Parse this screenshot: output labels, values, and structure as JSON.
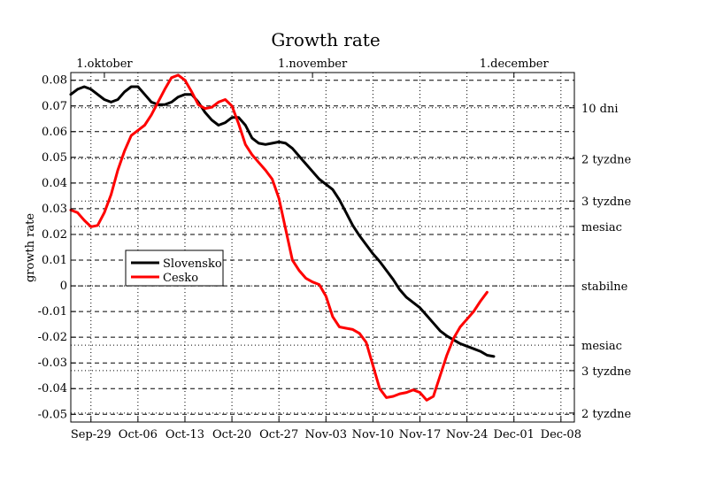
{
  "chart_data": {
    "type": "line",
    "title": "Growth rate",
    "xlabel": "",
    "ylabel": "growth rate",
    "x_axis": {
      "range": [
        "2020-09-26",
        "2020-12-10"
      ],
      "ticks": [
        {
          "date": "2020-09-29",
          "label": "Sep-29"
        },
        {
          "date": "2020-10-06",
          "label": "Oct-06"
        },
        {
          "date": "2020-10-13",
          "label": "Oct-13"
        },
        {
          "date": "2020-10-20",
          "label": "Oct-20"
        },
        {
          "date": "2020-10-27",
          "label": "Oct-27"
        },
        {
          "date": "2020-11-03",
          "label": "Nov-03"
        },
        {
          "date": "2020-11-10",
          "label": "Nov-10"
        },
        {
          "date": "2020-11-17",
          "label": "Nov-17"
        },
        {
          "date": "2020-11-24",
          "label": "Nov-24"
        },
        {
          "date": "2020-12-01",
          "label": "Dec-01"
        },
        {
          "date": "2020-12-08",
          "label": "Dec-08"
        }
      ],
      "top_ticks": [
        {
          "date": "2020-10-01",
          "label": "1.oktober"
        },
        {
          "date": "2020-11-01",
          "label": "1.november"
        },
        {
          "date": "2020-12-01",
          "label": "1.december"
        }
      ]
    },
    "y_axis": {
      "range": [
        -0.053,
        0.083
      ],
      "ticks": [
        {
          "value": 0.08,
          "label": "0.08"
        },
        {
          "value": 0.07,
          "label": "0.07"
        },
        {
          "value": 0.06,
          "label": "0.06"
        },
        {
          "value": 0.05,
          "label": "0.05"
        },
        {
          "value": 0.04,
          "label": "0.04"
        },
        {
          "value": 0.03,
          "label": "0.03"
        },
        {
          "value": 0.02,
          "label": "0.02"
        },
        {
          "value": 0.01,
          "label": "0.01"
        },
        {
          "value": 0,
          "label": "0"
        },
        {
          "value": -0.01,
          "label": "-0.01"
        },
        {
          "value": -0.02,
          "label": "-0.02"
        },
        {
          "value": -0.03,
          "label": "-0.03"
        },
        {
          "value": -0.04,
          "label": "-0.04"
        },
        {
          "value": -0.05,
          "label": "-0.05"
        }
      ],
      "right_ticks": [
        {
          "value": 0.0693,
          "label": "10 dni"
        },
        {
          "value": 0.0495,
          "label": "2 tyzdne"
        },
        {
          "value": 0.033,
          "label": "3 tyzdne"
        },
        {
          "value": 0.0231,
          "label": "mesiac"
        },
        {
          "value": 0,
          "label": "stabilne"
        },
        {
          "value": -0.0231,
          "label": "mesiac"
        },
        {
          "value": -0.033,
          "label": "3 tyzdne"
        },
        {
          "value": -0.0495,
          "label": "2 tyzdne"
        }
      ]
    },
    "grid": true,
    "legend": {
      "placement": "center-left"
    },
    "series": [
      {
        "name": "Slovensko",
        "color": "#000000",
        "points": [
          [
            "2020-09-26",
            0.0745
          ],
          [
            "2020-09-27",
            0.0765
          ],
          [
            "2020-09-28",
            0.0775
          ],
          [
            "2020-09-29",
            0.0765
          ],
          [
            "2020-09-30",
            0.0745
          ],
          [
            "2020-10-01",
            0.0725
          ],
          [
            "2020-10-02",
            0.0715
          ],
          [
            "2020-10-03",
            0.0725
          ],
          [
            "2020-10-04",
            0.0755
          ],
          [
            "2020-10-05",
            0.0775
          ],
          [
            "2020-10-06",
            0.0775
          ],
          [
            "2020-10-07",
            0.0745
          ],
          [
            "2020-10-08",
            0.0715
          ],
          [
            "2020-10-09",
            0.0705
          ],
          [
            "2020-10-10",
            0.0705
          ],
          [
            "2020-10-11",
            0.0715
          ],
          [
            "2020-10-12",
            0.0735
          ],
          [
            "2020-10-13",
            0.0745
          ],
          [
            "2020-10-14",
            0.0745
          ],
          [
            "2020-10-15",
            0.0715
          ],
          [
            "2020-10-16",
            0.0675
          ],
          [
            "2020-10-17",
            0.0645
          ],
          [
            "2020-10-18",
            0.0625
          ],
          [
            "2020-10-19",
            0.0635
          ],
          [
            "2020-10-20",
            0.0655
          ],
          [
            "2020-10-21",
            0.0655
          ],
          [
            "2020-10-22",
            0.0625
          ],
          [
            "2020-10-23",
            0.0575
          ],
          [
            "2020-10-24",
            0.0555
          ],
          [
            "2020-10-25",
            0.055
          ],
          [
            "2020-10-26",
            0.0555
          ],
          [
            "2020-10-27",
            0.056
          ],
          [
            "2020-10-28",
            0.0555
          ],
          [
            "2020-10-29",
            0.0535
          ],
          [
            "2020-10-30",
            0.0505
          ],
          [
            "2020-10-31",
            0.0475
          ],
          [
            "2020-11-01",
            0.0445
          ],
          [
            "2020-11-02",
            0.0415
          ],
          [
            "2020-11-03",
            0.0395
          ],
          [
            "2020-11-04",
            0.0375
          ],
          [
            "2020-11-05",
            0.0335
          ],
          [
            "2020-11-06",
            0.0285
          ],
          [
            "2020-11-07",
            0.0235
          ],
          [
            "2020-11-08",
            0.0195
          ],
          [
            "2020-11-09",
            0.016
          ],
          [
            "2020-11-10",
            0.0125
          ],
          [
            "2020-11-11",
            0.0095
          ],
          [
            "2020-11-12",
            0.006
          ],
          [
            "2020-11-13",
            0.0025
          ],
          [
            "2020-11-14",
            -0.0015
          ],
          [
            "2020-11-15",
            -0.0045
          ],
          [
            "2020-11-16",
            -0.0065
          ],
          [
            "2020-11-17",
            -0.0085
          ],
          [
            "2020-11-18",
            -0.0115
          ],
          [
            "2020-11-19",
            -0.0145
          ],
          [
            "2020-11-20",
            -0.0175
          ],
          [
            "2020-11-21",
            -0.0195
          ],
          [
            "2020-11-22",
            -0.021
          ],
          [
            "2020-11-23",
            -0.0225
          ],
          [
            "2020-11-24",
            -0.0235
          ],
          [
            "2020-11-25",
            -0.0245
          ],
          [
            "2020-11-26",
            -0.0255
          ],
          [
            "2020-11-27",
            -0.027
          ],
          [
            "2020-11-28",
            -0.0275
          ]
        ]
      },
      {
        "name": "Cesko",
        "color": "#ff0000",
        "points": [
          [
            "2020-09-26",
            0.0295
          ],
          [
            "2020-09-27",
            0.0285
          ],
          [
            "2020-09-28",
            0.0255
          ],
          [
            "2020-09-29",
            0.023
          ],
          [
            "2020-09-30",
            0.0235
          ],
          [
            "2020-10-01",
            0.0285
          ],
          [
            "2020-10-02",
            0.0355
          ],
          [
            "2020-10-03",
            0.045
          ],
          [
            "2020-10-04",
            0.0525
          ],
          [
            "2020-10-05",
            0.0585
          ],
          [
            "2020-10-06",
            0.0605
          ],
          [
            "2020-10-07",
            0.0625
          ],
          [
            "2020-10-08",
            0.0665
          ],
          [
            "2020-10-09",
            0.0715
          ],
          [
            "2020-10-10",
            0.0765
          ],
          [
            "2020-10-11",
            0.081
          ],
          [
            "2020-10-12",
            0.082
          ],
          [
            "2020-10-13",
            0.08
          ],
          [
            "2020-10-14",
            0.0755
          ],
          [
            "2020-10-15",
            0.0705
          ],
          [
            "2020-10-16",
            0.069
          ],
          [
            "2020-10-17",
            0.0695
          ],
          [
            "2020-10-18",
            0.0715
          ],
          [
            "2020-10-19",
            0.0725
          ],
          [
            "2020-10-20",
            0.07
          ],
          [
            "2020-10-21",
            0.063
          ],
          [
            "2020-10-22",
            0.055
          ],
          [
            "2020-10-23",
            0.051
          ],
          [
            "2020-10-24",
            0.048
          ],
          [
            "2020-10-25",
            0.045
          ],
          [
            "2020-10-26",
            0.0415
          ],
          [
            "2020-10-27",
            0.034
          ],
          [
            "2020-10-28",
            0.022
          ],
          [
            "2020-10-29",
            0.01
          ],
          [
            "2020-10-30",
            0.006
          ],
          [
            "2020-10-31",
            0.003
          ],
          [
            "2020-11-01",
            0.0015
          ],
          [
            "2020-11-02",
            0.0005
          ],
          [
            "2020-11-03",
            -0.004
          ],
          [
            "2020-11-04",
            -0.012
          ],
          [
            "2020-11-05",
            -0.016
          ],
          [
            "2020-11-06",
            -0.0165
          ],
          [
            "2020-11-07",
            -0.017
          ],
          [
            "2020-11-08",
            -0.0185
          ],
          [
            "2020-11-09",
            -0.022
          ],
          [
            "2020-11-10",
            -0.031
          ],
          [
            "2020-11-11",
            -0.04
          ],
          [
            "2020-11-12",
            -0.0435
          ],
          [
            "2020-11-13",
            -0.043
          ],
          [
            "2020-11-14",
            -0.042
          ],
          [
            "2020-11-15",
            -0.0415
          ],
          [
            "2020-11-16",
            -0.0405
          ],
          [
            "2020-11-17",
            -0.0415
          ],
          [
            "2020-11-18",
            -0.0445
          ],
          [
            "2020-11-19",
            -0.043
          ],
          [
            "2020-11-20",
            -0.035
          ],
          [
            "2020-11-21",
            -0.027
          ],
          [
            "2020-11-22",
            -0.0205
          ],
          [
            "2020-11-23",
            -0.016
          ],
          [
            "2020-11-24",
            -0.013
          ],
          [
            "2020-11-25",
            -0.01
          ],
          [
            "2020-11-26",
            -0.006
          ],
          [
            "2020-11-27",
            -0.0025
          ]
        ]
      }
    ]
  }
}
